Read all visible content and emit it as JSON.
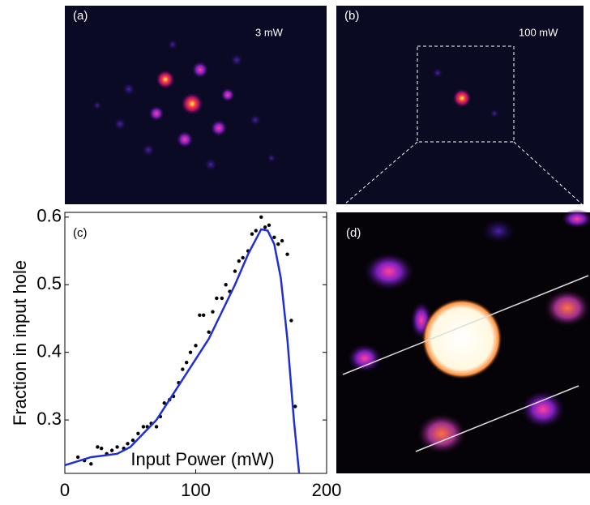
{
  "panels": {
    "a": {
      "label": "(a)",
      "power": "3 mW"
    },
    "b": {
      "label": "(b)",
      "power": "100 mW"
    },
    "d": {
      "label": "(d)"
    }
  },
  "chart_data": {
    "type": "scatter",
    "label": "(c)",
    "ylabel": "Fraction in input hole",
    "xlabel": "Input Power (mW)",
    "xlim": [
      0,
      200
    ],
    "xticks": [
      0,
      100,
      200
    ],
    "ylim": [
      0.221,
      0.607
    ],
    "yticks": [
      0.3,
      0.4,
      0.5,
      0.6
    ],
    "series": [
      {
        "type": "scatter",
        "color": "#000000",
        "x": [
          10,
          15,
          20,
          25,
          28,
          32,
          36,
          40,
          45,
          48,
          52,
          56,
          60,
          63,
          66,
          70,
          73,
          76,
          80,
          83,
          87,
          90,
          93,
          96,
          100,
          103,
          106,
          110,
          113,
          116,
          120,
          123,
          126,
          130,
          133,
          136,
          140,
          143,
          146,
          150,
          153,
          156,
          160,
          163,
          166,
          170,
          173,
          176
        ],
        "values": [
          0.245,
          0.24,
          0.235,
          0.26,
          0.258,
          0.25,
          0.255,
          0.26,
          0.258,
          0.265,
          0.27,
          0.28,
          0.29,
          0.29,
          0.295,
          0.29,
          0.305,
          0.325,
          0.33,
          0.335,
          0.355,
          0.375,
          0.385,
          0.4,
          0.41,
          0.455,
          0.455,
          0.43,
          0.46,
          0.48,
          0.48,
          0.5,
          0.49,
          0.52,
          0.535,
          0.54,
          0.55,
          0.575,
          0.58,
          0.6,
          0.585,
          0.588,
          0.57,
          0.56,
          0.565,
          0.545,
          0.447,
          0.32
        ]
      },
      {
        "type": "line",
        "color": "#1f2fd6",
        "x": [
          0,
          20,
          40,
          50,
          60,
          70,
          80,
          90,
          100,
          110,
          120,
          130,
          140,
          150,
          155,
          160,
          165,
          170,
          175,
          179
        ],
        "values": [
          0.233,
          0.245,
          0.25,
          0.26,
          0.28,
          0.3,
          0.33,
          0.36,
          0.39,
          0.42,
          0.46,
          0.5,
          0.545,
          0.582,
          0.58,
          0.56,
          0.51,
          0.42,
          0.3,
          0.221
        ]
      }
    ]
  }
}
